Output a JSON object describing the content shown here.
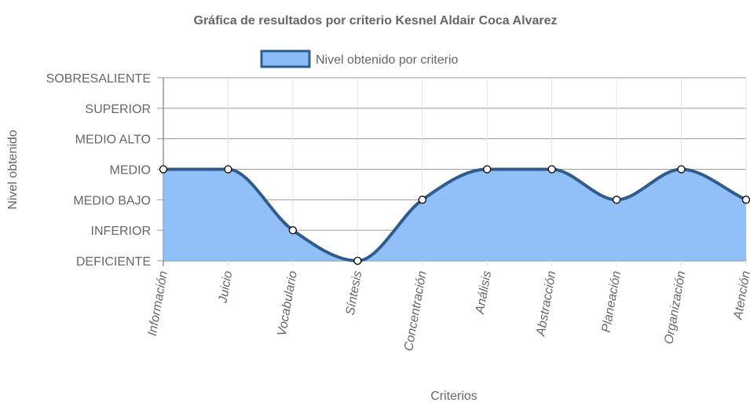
{
  "chart_data": {
    "type": "area",
    "title": "Gráfica de resultados por criterio Kesnel Aldair Coca Alvarez",
    "xlabel": "Criterios",
    "ylabel": "Nivel obtenido",
    "categories": [
      "Información",
      "Juicio",
      "Vocabulario",
      "Síntesis",
      "Concentración",
      "Análisis",
      "Abstracción",
      "Planeación",
      "Organización",
      "Atención"
    ],
    "y_levels": [
      "DEFICIENTE",
      "INFERIOR",
      "MEDIO BAJO",
      "MEDIO",
      "MEDIO ALTO",
      "SUPERIOR",
      "SOBRESALIENTE"
    ],
    "ylim": [
      0,
      6
    ],
    "series": [
      {
        "name": "Nivel obtenido por criterio",
        "values": [
          3,
          3,
          1,
          0,
          2,
          3,
          3,
          2,
          3,
          2
        ],
        "fill_color": "#8bbcf8",
        "line_color": "#2f5c8f"
      }
    ],
    "legend_position": "top",
    "grid": true
  }
}
